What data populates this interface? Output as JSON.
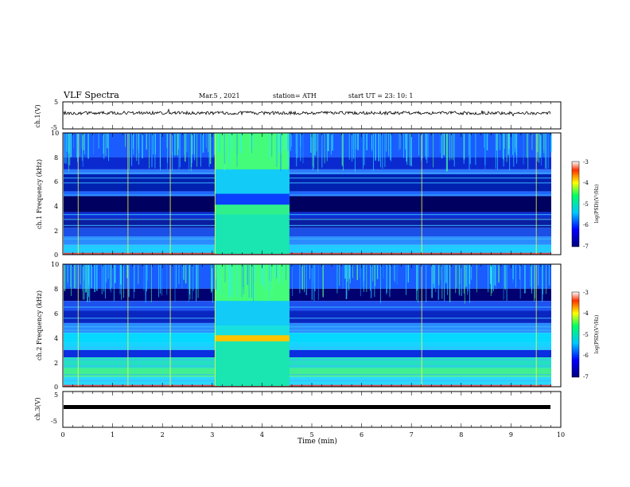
{
  "header": {
    "title": "VLF Spectra",
    "date": "Mar.5 , 2021",
    "station": "station= ATH",
    "start": "start UT = 23: 10: 1"
  },
  "chart_data": [
    {
      "type": "line",
      "panel": "ch1-waveform",
      "ylabel": "ch.1(V)",
      "ylim": [
        -5,
        5
      ],
      "yticks": [
        "5",
        "-5"
      ],
      "xlim": [
        0,
        10
      ],
      "description_values": {
        "mean_voltage": 0
      }
    },
    {
      "type": "heatmap",
      "panel": "ch1-spectrogram",
      "ylabel": "ch.1 Frequency (kHz)",
      "ylim": [
        0,
        10
      ],
      "yticks": [
        "0",
        "2",
        "4",
        "6",
        "8",
        "10"
      ],
      "xlim": [
        0,
        10
      ],
      "colorbar": {
        "label": "log(PSD)(V²/Hz)",
        "range": [
          -7,
          -3
        ],
        "ticks": [
          "-3",
          "-4",
          "-5",
          "-6",
          "-7"
        ]
      },
      "bright_interval_min": [
        3.05,
        4.55
      ]
    },
    {
      "type": "heatmap",
      "panel": "ch2-spectrogram",
      "ylabel": "ch.2 Frequency (kHz)",
      "ylim": [
        0,
        10
      ],
      "yticks": [
        "0",
        "2",
        "4",
        "6",
        "8",
        "10"
      ],
      "xlim": [
        0,
        10
      ],
      "colorbar": {
        "label": "log(PSD)(V²/Hz)",
        "range": [
          -7,
          -3
        ],
        "ticks": [
          "-3",
          "-4",
          "-5",
          "-6",
          "-7"
        ]
      },
      "bright_interval_min": [
        3.05,
        4.55
      ]
    },
    {
      "type": "line",
      "panel": "ch3-waveform",
      "ylabel": "ch.3(V)",
      "ylim": [
        -5,
        5
      ],
      "yticks": [
        "5",
        "-5"
      ],
      "xlim": [
        0,
        10
      ],
      "description_values": {
        "mean_voltage": 0
      }
    }
  ],
  "xaxis": {
    "label": "Time (min)",
    "ticks": [
      "0",
      "1",
      "2",
      "3",
      "4",
      "5",
      "6",
      "7",
      "8",
      "9",
      "10"
    ],
    "range": [
      0,
      10
    ]
  },
  "colors": {
    "deep": "#00008a",
    "low": "#0000ff",
    "mid": "#00c8ff",
    "high": "#00ff64",
    "peak": "#ff0000"
  }
}
